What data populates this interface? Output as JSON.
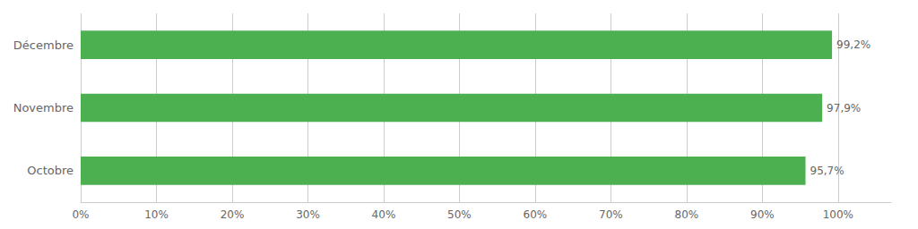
{
  "chart_data": {
    "type": "bar",
    "orientation": "horizontal",
    "categories": [
      "Décembre",
      "Novembre",
      "Octobre"
    ],
    "values": [
      99.2,
      97.9,
      95.7
    ],
    "value_labels": [
      "99,2%",
      "97,9%",
      "95,7%"
    ],
    "data_labels": true,
    "color": "#4caf50",
    "xlim": [
      0,
      107
    ],
    "xticks": [
      {
        "value": 0,
        "label": "0%"
      },
      {
        "value": 10,
        "label": "10%"
      },
      {
        "value": 20,
        "label": "20%"
      },
      {
        "value": 30,
        "label": "30%"
      },
      {
        "value": 40,
        "label": "40%"
      },
      {
        "value": 50,
        "label": "50%"
      },
      {
        "value": 60,
        "label": "60%"
      },
      {
        "value": 70,
        "label": "70%"
      },
      {
        "value": 80,
        "label": "80%"
      },
      {
        "value": 90,
        "label": "90%"
      },
      {
        "value": 100,
        "label": "100%"
      }
    ],
    "grid": true
  }
}
